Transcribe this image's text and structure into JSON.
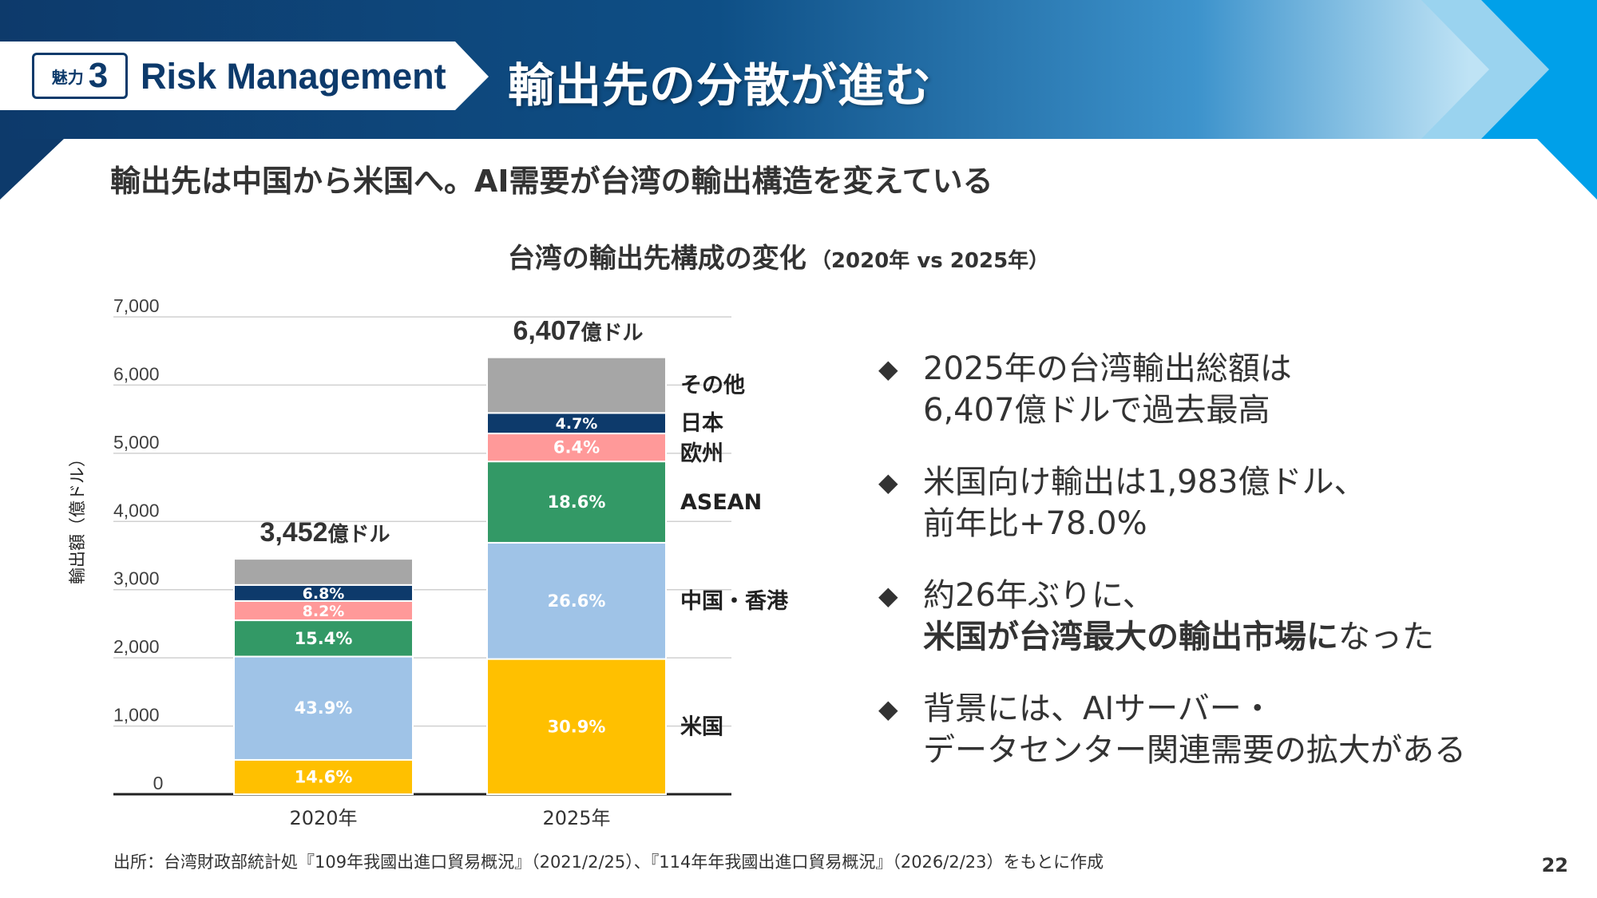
{
  "header": {
    "badge_text": "魅力",
    "badge_number": "3",
    "section": "Risk Management",
    "title": "輸出先の分散が進む"
  },
  "subtitle": "輸出先は中国から米国へ。AI需要が台湾の輸出構造を変えている",
  "chart_title": {
    "main": "台湾の輸出先構成の変化",
    "sub": "（2020年 vs 2025年）"
  },
  "chart_data": {
    "type": "bar",
    "stacked": true,
    "categories": [
      "2020年",
      "2025年"
    ],
    "totals": [
      3452,
      6407
    ],
    "total_labels": [
      {
        "num": "3,452",
        "unit": "億ドル"
      },
      {
        "num": "6,407",
        "unit": "億ドル"
      }
    ],
    "ylabel": "輸出額（億ドル）",
    "ylim": [
      0,
      7000
    ],
    "yticks": [
      "0",
      "1,000",
      "2,000",
      "3,000",
      "4,000",
      "5,000",
      "6,000",
      "7,000"
    ],
    "grid": true,
    "series": [
      {
        "name": "米国",
        "color": "#ffc000",
        "values": [
          504,
          1983
        ],
        "labels": [
          "14.6%",
          "30.9%"
        ]
      },
      {
        "name": "中国・香港",
        "color": "#9fc3e7",
        "values": [
          1515,
          1705
        ],
        "labels": [
          "43.9%",
          "26.6%"
        ]
      },
      {
        "name": "ASEAN",
        "color": "#339966",
        "values": [
          532,
          1192
        ],
        "labels": [
          "15.4%",
          "18.6%"
        ]
      },
      {
        "name": "欧州",
        "color": "#ff9999",
        "values": [
          283,
          410
        ],
        "labels": [
          "8.2%",
          "6.4%"
        ]
      },
      {
        "name": "日本",
        "color": "#0d3a6b",
        "values": [
          235,
          301
        ],
        "labels": [
          "6.8%",
          "4.7%"
        ]
      },
      {
        "name": "その他",
        "color": "#a6a6a6",
        "values": [
          383,
          816
        ],
        "labels": [
          "",
          ""
        ]
      }
    ]
  },
  "bullets": [
    {
      "line1": [
        {
          "t": "2025年の台湾輸出総額は",
          "b": false
        }
      ],
      "line2": [
        {
          "t": "6,407億ドルで過去最高",
          "b": false
        }
      ]
    },
    {
      "line1": [
        {
          "t": "米国向け輸出は1,983億ドル、",
          "b": false
        }
      ],
      "line2": [
        {
          "t": "前年比+78.0%",
          "b": false
        }
      ]
    },
    {
      "line1": [
        {
          "t": "約26年ぶりに、",
          "b": false
        }
      ],
      "line2": [
        {
          "t": "米国が台湾最大の輸出市場に",
          "b": true
        },
        {
          "t": "なった",
          "b": false
        }
      ]
    },
    {
      "line1": [
        {
          "t": "背景には、AIサーバー・",
          "b": false
        }
      ],
      "line2": [
        {
          "t": "データセンター関連需要の拡大がある",
          "b": false
        }
      ]
    }
  ],
  "bullet_marker": "◆",
  "source": "出所：台湾財政部統計処『109年我國出進口貿易概況』（2021/2/25）、『114年年我國出進口貿易概況』（2026/2/23）をもとに作成",
  "page_number": "22",
  "colors": {
    "navy": "#0d3a6b",
    "banner_mid": "#1b6fae",
    "banner_light": "#a9d8f0",
    "accent_blue": "#00a0e9"
  }
}
